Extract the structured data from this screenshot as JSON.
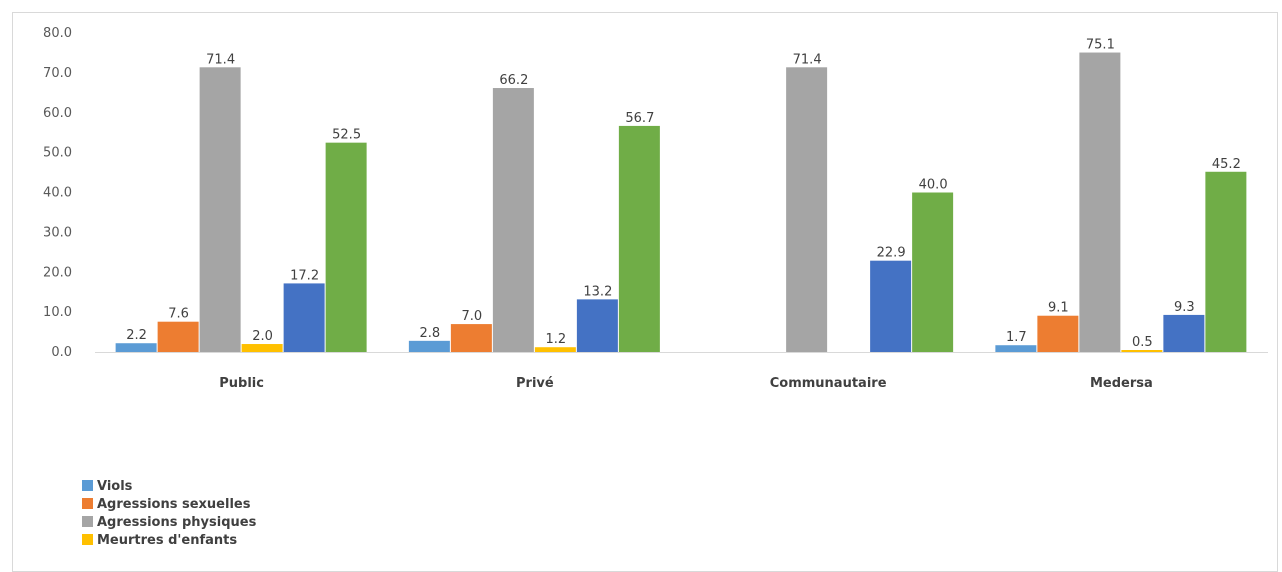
{
  "chart_data": {
    "type": "bar",
    "categories": [
      "Public",
      "Privé",
      "Communautaire",
      "Medersa"
    ],
    "ylim": [
      0,
      80
    ],
    "yticks": [
      "0.0",
      "10.0",
      "20.0",
      "30.0",
      "40.0",
      "50.0",
      "60.0",
      "70.0",
      "80.0"
    ],
    "grid": false,
    "legend_position": "bottom-left",
    "series": [
      {
        "name": "Viols",
        "color": "#5b9bd5",
        "values": [
          2.2,
          2.8,
          null,
          1.7
        ],
        "labels": [
          "2.2",
          "2.8",
          "",
          "1.7"
        ]
      },
      {
        "name": "Agressions sexuelles",
        "color": "#ed7d31",
        "values": [
          7.6,
          7.0,
          null,
          9.1
        ],
        "labels": [
          "7.6",
          "7.0",
          "",
          "9.1"
        ]
      },
      {
        "name": "Agressions physiques",
        "color": "#a5a5a5",
        "values": [
          71.4,
          66.2,
          71.4,
          75.1
        ],
        "labels": [
          "71.4",
          "66.2",
          "71.4",
          "75.1"
        ]
      },
      {
        "name": "Meurtres d'enfants",
        "color": "#ffc000",
        "values": [
          2.0,
          1.2,
          null,
          0.5
        ],
        "labels": [
          "2.0",
          "1.2",
          "",
          "0.5"
        ]
      },
      {
        "name": "",
        "color": "#4472c4",
        "values": [
          17.2,
          13.2,
          22.9,
          9.3
        ],
        "labels": [
          "17.2",
          "13.2",
          "22.9",
          "9.3"
        ]
      },
      {
        "name": "",
        "color": "#70ad47",
        "values": [
          52.5,
          56.7,
          40.0,
          45.2
        ],
        "labels": [
          "52.5",
          "56.7",
          "40.0",
          "45.2"
        ]
      }
    ]
  }
}
